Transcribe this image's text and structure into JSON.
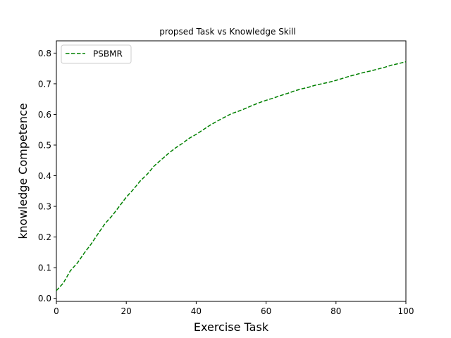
{
  "chart_data": {
    "type": "line",
    "title": "propsed Task vs Knowledge Skill",
    "xlabel": "Exercise Task",
    "ylabel": "knowledge Competence",
    "xlim": [
      0,
      100
    ],
    "ylim": [
      -0.01,
      0.84
    ],
    "xticks": [
      0,
      20,
      40,
      60,
      80,
      100
    ],
    "yticks": [
      0.0,
      0.1,
      0.2,
      0.3,
      0.4,
      0.5,
      0.6,
      0.7,
      0.8
    ],
    "grid": false,
    "legend_position": "top-left",
    "series": [
      {
        "name": "PSBMR",
        "color": "#008000",
        "line_style": "dashed",
        "x": [
          0,
          2,
          4,
          6,
          8,
          10,
          12,
          14,
          16,
          18,
          20,
          22,
          24,
          26,
          28,
          30,
          32,
          34,
          36,
          38,
          40,
          42,
          44,
          46,
          48,
          50,
          52,
          54,
          56,
          58,
          60,
          62,
          64,
          66,
          68,
          70,
          72,
          74,
          76,
          78,
          80,
          82,
          84,
          86,
          88,
          90,
          92,
          94,
          96,
          98,
          100
        ],
        "values": [
          0.025,
          0.05,
          0.09,
          0.115,
          0.148,
          0.178,
          0.212,
          0.245,
          0.27,
          0.3,
          0.33,
          0.355,
          0.383,
          0.405,
          0.432,
          0.452,
          0.472,
          0.49,
          0.505,
          0.522,
          0.535,
          0.55,
          0.565,
          0.578,
          0.59,
          0.602,
          0.61,
          0.619,
          0.629,
          0.638,
          0.646,
          0.653,
          0.661,
          0.668,
          0.676,
          0.683,
          0.688,
          0.695,
          0.7,
          0.705,
          0.711,
          0.718,
          0.725,
          0.731,
          0.737,
          0.742,
          0.748,
          0.754,
          0.761,
          0.766,
          0.772
        ]
      }
    ]
  }
}
